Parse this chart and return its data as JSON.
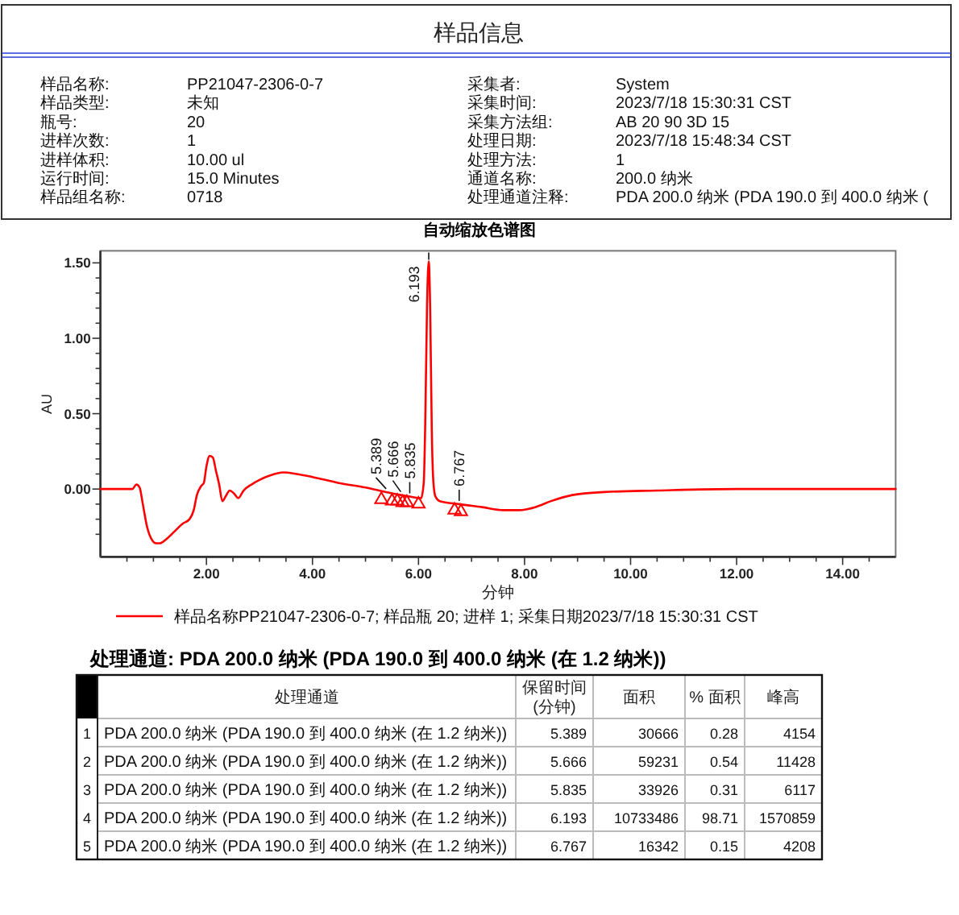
{
  "chart_data": {
    "type": "line",
    "title": "自动缩放色谱图",
    "xlabel": "分钟",
    "ylabel": "AU",
    "xlim": [
      0,
      15
    ],
    "ylim": [
      -0.45,
      1.58
    ],
    "xticks": [
      {
        "value": 0.5,
        "label": null
      },
      {
        "value": 1,
        "label": null
      },
      {
        "value": 1.5,
        "label": null
      },
      {
        "value": 2,
        "label": "2.00"
      },
      {
        "value": 2.5,
        "label": null
      },
      {
        "value": 3,
        "label": null
      },
      {
        "value": 3.5,
        "label": null
      },
      {
        "value": 4,
        "label": "4.00"
      },
      {
        "value": 4.5,
        "label": null
      },
      {
        "value": 5,
        "label": null
      },
      {
        "value": 5.5,
        "label": null
      },
      {
        "value": 6,
        "label": "6.00"
      },
      {
        "value": 6.5,
        "label": null
      },
      {
        "value": 7,
        "label": null
      },
      {
        "value": 7.5,
        "label": null
      },
      {
        "value": 8,
        "label": "8.00"
      },
      {
        "value": 8.5,
        "label": null
      },
      {
        "value": 9,
        "label": null
      },
      {
        "value": 9.5,
        "label": null
      },
      {
        "value": 10,
        "label": "10.00"
      },
      {
        "value": 10.5,
        "label": null
      },
      {
        "value": 11,
        "label": null
      },
      {
        "value": 11.5,
        "label": null
      },
      {
        "value": 12,
        "label": "12.00"
      },
      {
        "value": 12.5,
        "label": null
      },
      {
        "value": 13,
        "label": null
      },
      {
        "value": 13.5,
        "label": null
      },
      {
        "value": 14,
        "label": "14.00"
      },
      {
        "value": 14.5,
        "label": null
      }
    ],
    "yticks": [
      {
        "value": -0.3,
        "label": null
      },
      {
        "value": -0.2,
        "label": null
      },
      {
        "value": -0.1,
        "label": null
      },
      {
        "value": 0,
        "label": "0.00"
      },
      {
        "value": 0.1,
        "label": null
      },
      {
        "value": 0.2,
        "label": null
      },
      {
        "value": 0.3,
        "label": null
      },
      {
        "value": 0.4,
        "label": null
      },
      {
        "value": 0.5,
        "label": "0.50"
      },
      {
        "value": 0.6,
        "label": null
      },
      {
        "value": 0.7,
        "label": null
      },
      {
        "value": 0.8,
        "label": null
      },
      {
        "value": 0.9,
        "label": null
      },
      {
        "value": 1,
        "label": "1.00"
      },
      {
        "value": 1.1,
        "label": null
      },
      {
        "value": 1.2,
        "label": null
      },
      {
        "value": 1.3,
        "label": null
      },
      {
        "value": 1.4,
        "label": null
      },
      {
        "value": 1.5,
        "label": "1.50"
      }
    ],
    "legend": "bottom",
    "series": [
      {
        "name": "样品名称PP21047-2306-0-7; 样品瓶 20; 进样 1; 采集日期2023/7/18 15:30:31 CST",
        "color": "#ff0000",
        "x": [
          0,
          0.5,
          0.6,
          0.68,
          0.74,
          0.8,
          0.88,
          0.96,
          1.05,
          1.12,
          1.25,
          1.4,
          1.55,
          1.68,
          1.76,
          1.82,
          1.9,
          1.95,
          2,
          2.06,
          2.12,
          2.18,
          2.24,
          2.3,
          2.36,
          2.44,
          2.52,
          2.6,
          2.7,
          2.85,
          3,
          3.2,
          3.45,
          3.7,
          4,
          4.5,
          5,
          5.389,
          5.666,
          5.835,
          6.05,
          6.1,
          6.13,
          6.16,
          6.193,
          6.22,
          6.25,
          6.28,
          6.32,
          6.4,
          6.767,
          7.2,
          7.6,
          7.9,
          8.2,
          8.5,
          8.9,
          9.5,
          10.5,
          12,
          15
        ],
        "values": [
          0,
          0,
          0,
          0.03,
          0.01,
          -0.1,
          -0.25,
          -0.33,
          -0.36,
          -0.36,
          -0.33,
          -0.28,
          -0.23,
          -0.2,
          -0.14,
          -0.04,
          0.02,
          0.04,
          0.15,
          0.22,
          0.21,
          0.12,
          0.03,
          -0.08,
          -0.05,
          -0.01,
          -0.03,
          -0.06,
          -0.01,
          0.03,
          0.06,
          0.09,
          0.11,
          0.1,
          0.08,
          0.04,
          0.01,
          -0.02,
          -0.04,
          -0.05,
          -0.06,
          0.05,
          0.5,
          1.2,
          1.51,
          1.2,
          0.4,
          0.05,
          -0.05,
          -0.08,
          -0.1,
          -0.12,
          -0.14,
          -0.14,
          -0.12,
          -0.08,
          -0.04,
          -0.02,
          -0.01,
          0,
          0
        ]
      },
      {
        "type": "scatter",
        "color": "#ff0000",
        "marker": "triangle",
        "x": [
          5.3,
          5.5,
          5.6,
          5.7,
          5.78,
          6,
          6.68,
          6.8
        ],
        "values": [
          -0.07,
          -0.08,
          -0.08,
          -0.09,
          -0.09,
          -0.1,
          -0.14,
          -0.15
        ]
      }
    ],
    "annotations": [
      "样品信息",
      "样品名称:",
      "PP21047-2306-0-7",
      "样品类型:",
      "未知",
      "瓶号:",
      "20",
      "进样次数:",
      "1",
      "进样体积:",
      "10.00 ul",
      "运行时间:",
      "15.0 Minutes",
      "样品组名称:",
      "0718",
      "采集者:",
      "System",
      "采集时间:",
      "2023/7/18 15:30:31 CST",
      "采集方法组:",
      "AB 20 90 3D 15",
      "处理日期:",
      "2023/7/18 15:48:34 CST",
      "处理方法:",
      "1",
      "通道名称:",
      "200.0 纳米",
      "处理通道注释:",
      "PDA 200.0 纳米 (PDA 190.0 到 400.0 纳米 (",
      "处理通道: PDA 200.0 纳米 (PDA 190.0 到 400.0 纳米 (在 1.2 纳米))",
      "处理通道",
      "保留时间\n(分钟)",
      "面积",
      "% 面积",
      "峰高",
      "1",
      "PDA 200.0 纳米 (PDA 190.0 到 400.0 纳米 (在 1.2 纳米))",
      "5.389",
      "30666",
      "0.28",
      "4154",
      "2",
      "PDA 200.0 纳米 (PDA 190.0 到 400.0 纳米 (在 1.2 纳米))",
      "5.666",
      "59231",
      "0.54",
      "11428",
      "3",
      "PDA 200.0 纳米 (PDA 190.0 到 400.0 纳米 (在 1.2 纳米))",
      "5.835",
      "33926",
      "0.31",
      "6117",
      "4",
      "PDA 200.0 纳米 (PDA 190.0 到 400.0 纳米 (在 1.2 纳米))",
      "6.193",
      "10733486",
      "98.71",
      "1570859",
      "5",
      "PDA 200.0 纳米 (PDA 190.0 到 400.0 纳米 (在 1.2 纳米))",
      "6.767",
      "16342",
      "0.15",
      "4208",
      {
        "text": "5.389",
        "x": 5.389,
        "y": -0.02
      },
      {
        "text": "5.666",
        "x": 5.666,
        "y": -0.04
      },
      {
        "text": "5.835",
        "x": 5.835,
        "y": -0.05
      },
      {
        "text": "6.193",
        "x": 6.193,
        "y": 1.51
      },
      {
        "text": "6.767",
        "x": 6.767,
        "y": -0.1
      }
    ]
  }
}
